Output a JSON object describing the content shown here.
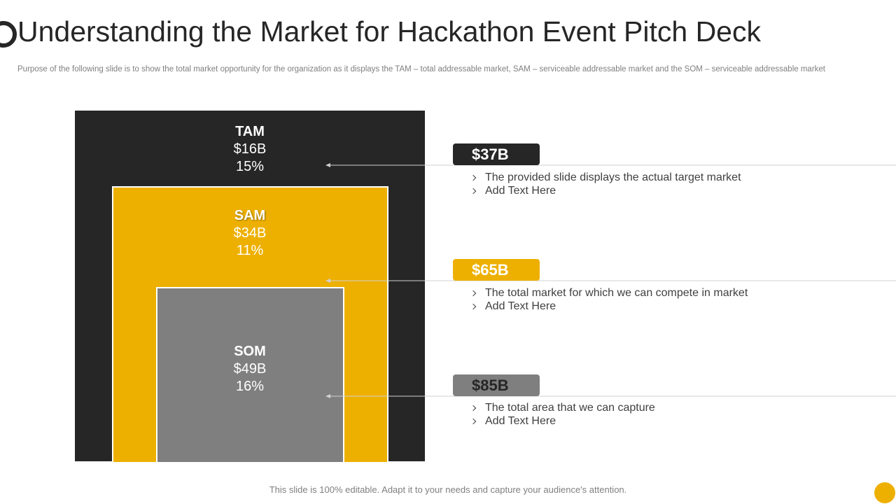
{
  "header": {
    "title": "Understanding the Market for Hackathon Event Pitch Deck",
    "subtitle": "Purpose of the following slide is to show the total market opportunity for the organization as it displays the TAM – total addressable market, SAM – serviceable addressable market and the SOM – serviceable addressable market"
  },
  "markets": [
    {
      "name": "TAM",
      "value": "$16B",
      "share": "15%",
      "callout": "$37B",
      "bullets": [
        "The provided slide displays the actual target market",
        "Add Text Here"
      ]
    },
    {
      "name": "SAM",
      "value": "$34B",
      "share": "11%",
      "callout": "$65B",
      "bullets": [
        "The total market for which we can compete in market",
        "Add Text Here"
      ]
    },
    {
      "name": "SOM",
      "value": "$49B",
      "share": "16%",
      "callout": "$85B",
      "bullets": [
        "The total area that we can capture",
        "Add Text Here"
      ]
    }
  ],
  "footer": "This slide is 100% editable. Adapt it to your needs and capture your audience's attention."
}
